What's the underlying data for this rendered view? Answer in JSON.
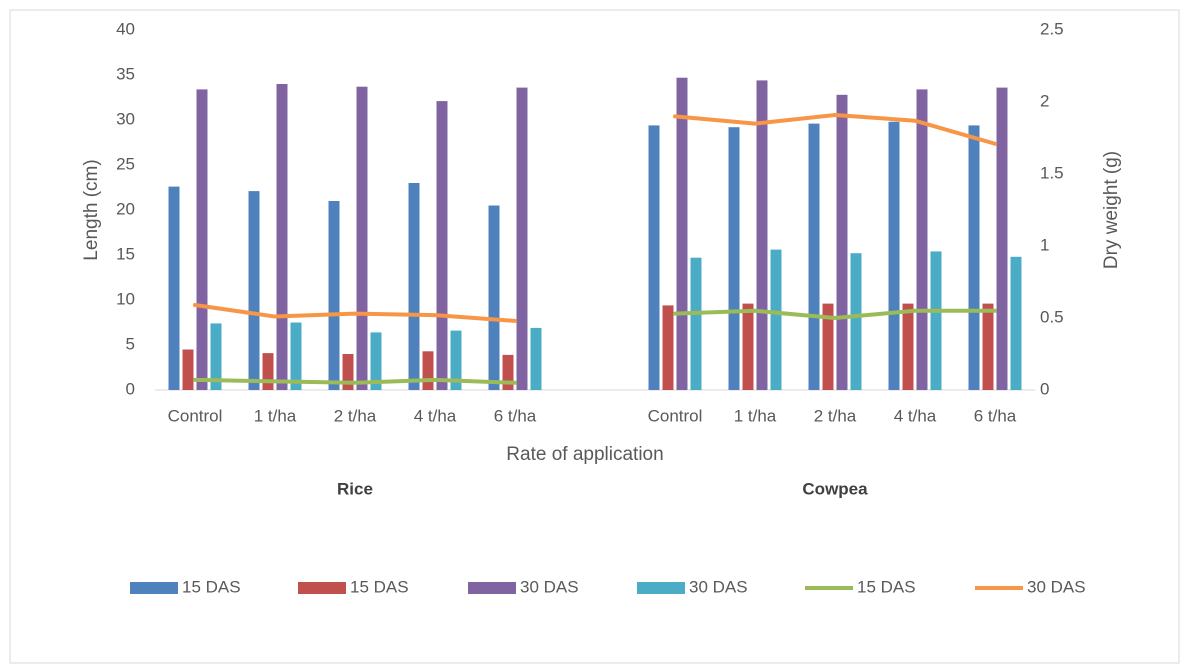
{
  "chart_data": {
    "type": "bar-line",
    "categories": [
      "Control",
      "1 t/ha",
      "2 t/ha",
      "4 t/ha",
      "6 t/ha",
      null,
      "Control",
      "1 t/ha",
      "2 t/ha",
      "4 t/ha",
      "6 t/ha"
    ],
    "group_labels": [
      "Rice",
      "Cowpea"
    ],
    "x_label": "Rate of application",
    "y_label": "Length (cm)",
    "y2_label": "Dry weight (g)",
    "ylim": [
      0,
      40
    ],
    "yticks": [
      0,
      5,
      10,
      15,
      20,
      25,
      30,
      35,
      40
    ],
    "y2lim": [
      0,
      2.5
    ],
    "y2ticks": [
      0,
      0.5,
      1,
      1.5,
      2,
      2.5
    ],
    "grid": false,
    "legend": "bottom",
    "series": [
      {
        "name": "15 DAS",
        "type": "bar",
        "color": "#4f81bd",
        "values": [
          22.6,
          22.1,
          21.0,
          23.0,
          20.5,
          null,
          29.4,
          29.2,
          29.6,
          29.8,
          29.4
        ]
      },
      {
        "name": "15 DAS",
        "type": "bar",
        "color": "#c0504d",
        "values": [
          4.5,
          4.1,
          4.0,
          4.3,
          3.9,
          null,
          9.4,
          9.6,
          9.6,
          9.6,
          9.6
        ]
      },
      {
        "name": "30 DAS",
        "type": "bar",
        "color": "#8064a2",
        "values": [
          33.4,
          34.0,
          33.7,
          32.1,
          33.6,
          null,
          34.7,
          34.4,
          32.8,
          33.4,
          33.6
        ]
      },
      {
        "name": "30 DAS",
        "type": "bar",
        "color": "#4bacc6",
        "values": [
          7.4,
          7.5,
          6.4,
          6.6,
          6.9,
          null,
          14.7,
          15.6,
          15.2,
          15.4,
          14.8
        ]
      },
      {
        "name": "15 DAS",
        "type": "line",
        "axis": "y2",
        "color": "#9bbb59",
        "values": [
          0.07,
          0.06,
          0.05,
          0.07,
          0.05,
          null,
          0.53,
          0.55,
          0.5,
          0.55,
          0.55
        ]
      },
      {
        "name": "30 DAS",
        "type": "line",
        "axis": "y2",
        "color": "#f79646",
        "values": [
          0.59,
          0.51,
          0.53,
          0.52,
          0.48,
          null,
          1.9,
          1.85,
          1.91,
          1.87,
          1.71
        ]
      }
    ]
  }
}
